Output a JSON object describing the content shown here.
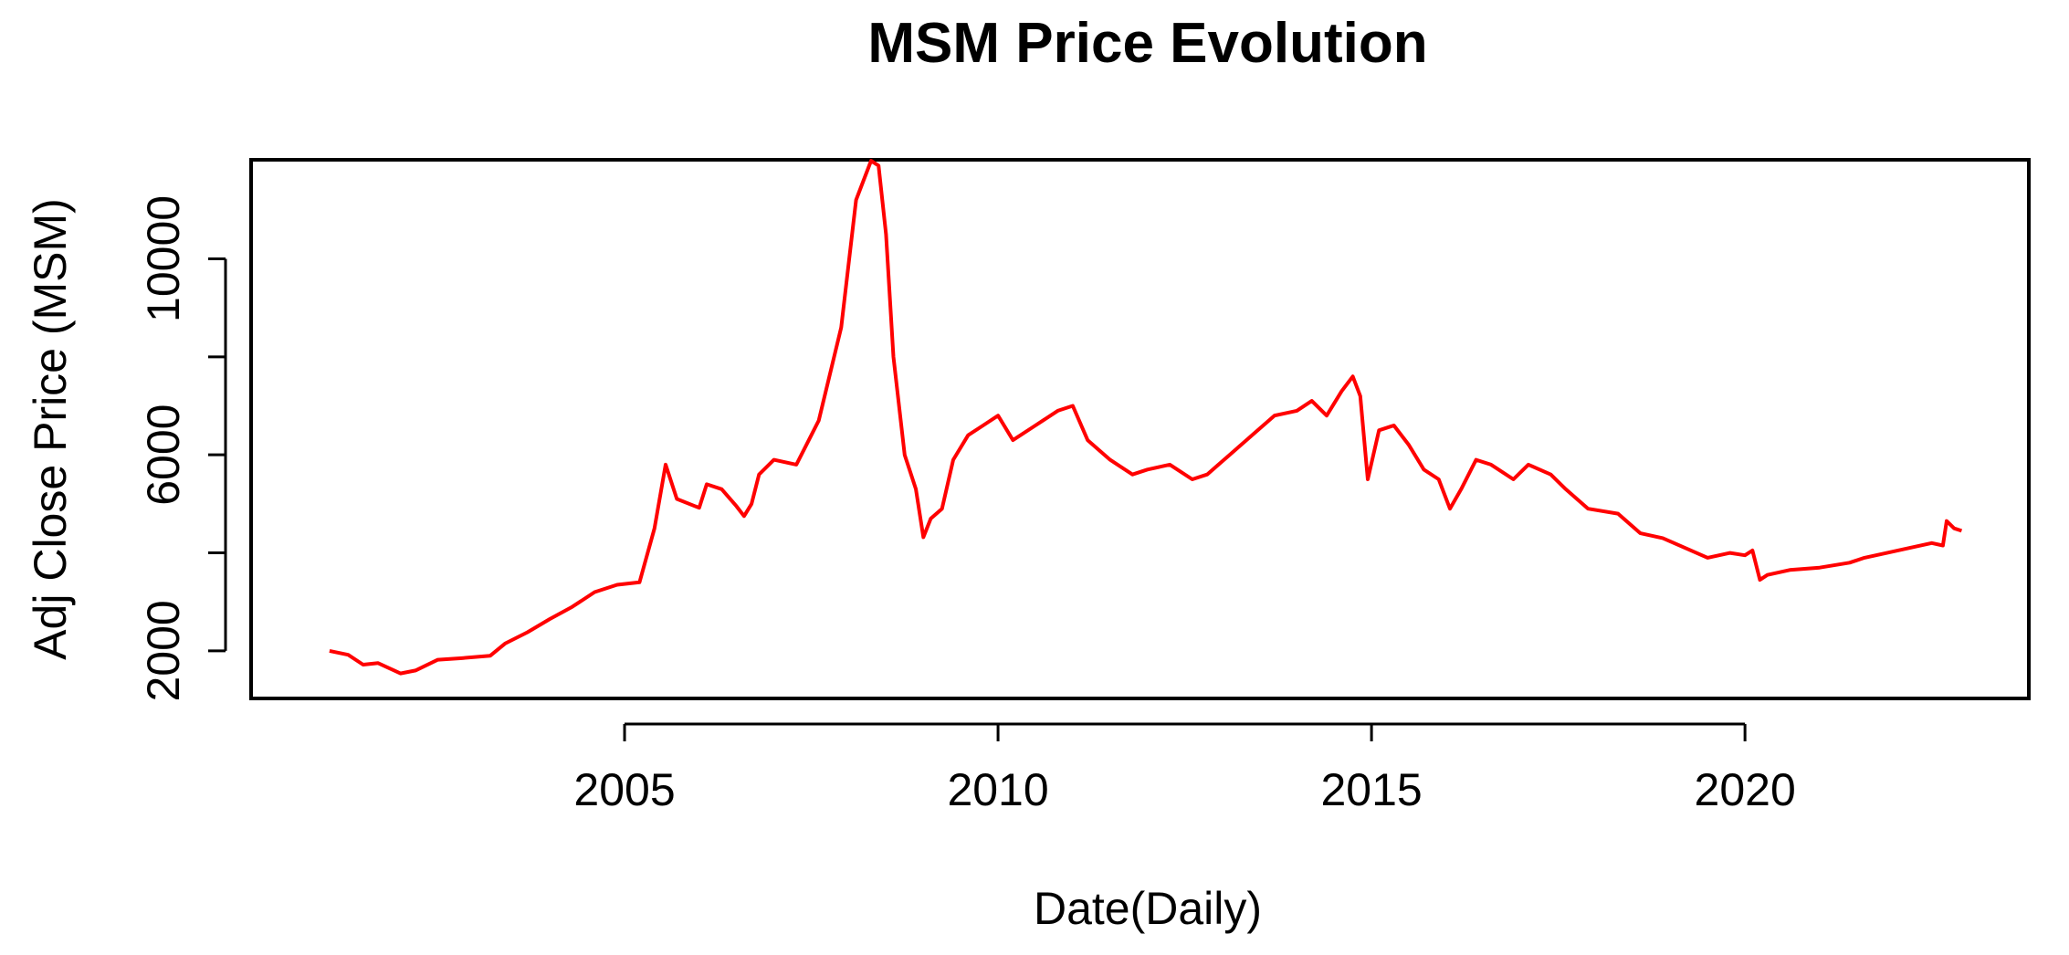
{
  "chart_data": {
    "type": "line",
    "title": "MSM Price Evolution",
    "xlabel": "Date(Daily)",
    "ylabel": "Adj Close Price (MSM)",
    "xlim": [
      2000.0,
      2023.8
    ],
    "ylim": [
      1030,
      12020
    ],
    "x_ticks": [
      2005,
      2010,
      2015,
      2020
    ],
    "x_tick_labels": [
      "2005",
      "2010",
      "2015",
      "2020"
    ],
    "y_ticks": [
      2000,
      6000,
      10000
    ],
    "y_tick_labels": [
      "2000",
      "6000",
      "10000"
    ],
    "y_minor_ticks": [
      4000,
      8000
    ],
    "grid": false,
    "series": [
      {
        "name": "MSM",
        "color": "#ff0000",
        "x": [
          2001.05,
          2001.3,
          2001.5,
          2001.7,
          2002.0,
          2002.2,
          2002.5,
          2002.8,
          2003.2,
          2003.4,
          2003.7,
          2004.0,
          2004.3,
          2004.6,
          2004.9,
          2005.2,
          2005.4,
          2005.55,
          2005.7,
          2006.0,
          2006.1,
          2006.3,
          2006.5,
          2006.6,
          2006.7,
          2006.8,
          2007.0,
          2007.3,
          2007.6,
          2007.9,
          2008.1,
          2008.3,
          2008.4,
          2008.5,
          2008.6,
          2008.75,
          2008.9,
          2009.0,
          2009.1,
          2009.25,
          2009.4,
          2009.6,
          2009.8,
          2010.0,
          2010.2,
          2010.5,
          2010.8,
          2011.0,
          2011.2,
          2011.5,
          2011.8,
          2012.0,
          2012.3,
          2012.6,
          2012.8,
          2013.1,
          2013.4,
          2013.7,
          2014.0,
          2014.2,
          2014.4,
          2014.6,
          2014.75,
          2014.85,
          2014.95,
          2015.1,
          2015.3,
          2015.5,
          2015.7,
          2015.9,
          2016.05,
          2016.2,
          2016.4,
          2016.6,
          2016.9,
          2017.1,
          2017.4,
          2017.6,
          2017.9,
          2018.3,
          2018.6,
          2018.9,
          2019.2,
          2019.5,
          2019.8,
          2020.0,
          2020.1,
          2020.2,
          2020.3,
          2020.6,
          2021.0,
          2021.4,
          2021.6,
          2021.9,
          2022.2,
          2022.5,
          2022.65,
          2022.7,
          2022.8,
          2022.9
        ],
        "y": [
          2000,
          1920,
          1720,
          1750,
          1540,
          1600,
          1820,
          1850,
          1900,
          2150,
          2380,
          2650,
          2900,
          3200,
          3350,
          3400,
          4500,
          5800,
          5100,
          4920,
          5400,
          5300,
          4950,
          4750,
          5000,
          5600,
          5900,
          5800,
          6700,
          8600,
          11200,
          12000,
          11900,
          10500,
          8000,
          6000,
          5300,
          4320,
          4700,
          4900,
          5900,
          6400,
          6600,
          6800,
          6300,
          6600,
          6900,
          7000,
          6300,
          5900,
          5600,
          5700,
          5800,
          5500,
          5600,
          6000,
          6400,
          6800,
          6900,
          7100,
          6800,
          7300,
          7600,
          7200,
          5500,
          6500,
          6600,
          6200,
          5700,
          5500,
          4900,
          5300,
          5900,
          5800,
          5500,
          5800,
          5600,
          5300,
          4900,
          4800,
          4400,
          4300,
          4100,
          3900,
          4000,
          3950,
          4050,
          3450,
          3550,
          3650,
          3700,
          3800,
          3900,
          4000,
          4100,
          4200,
          4150,
          4650,
          4500,
          4450
        ]
      }
    ]
  }
}
